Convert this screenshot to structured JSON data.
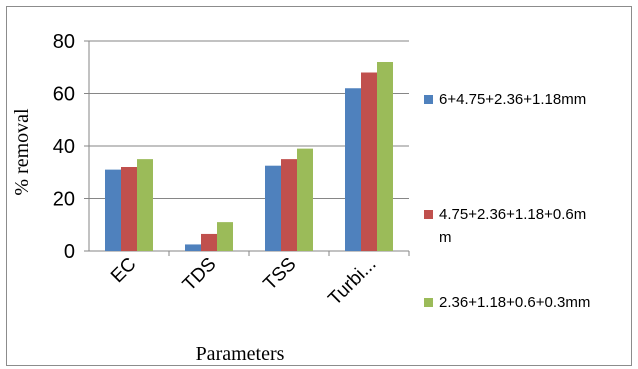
{
  "chart_data": {
    "type": "bar",
    "categories": [
      "EC",
      "TDS",
      "TSS",
      "Turbi..."
    ],
    "series": [
      {
        "name": "6+4.75+2.36+1.18mm",
        "color": "#4f81bd",
        "values": [
          31,
          2.5,
          32.5,
          62
        ]
      },
      {
        "name": "4.75+2.36+1.18+0.6mm",
        "color": "#c0504d",
        "values": [
          32,
          6.5,
          35,
          68
        ]
      },
      {
        "name": "2.36+1.18+0.6+0.3mm",
        "color": "#9bbb59",
        "values": [
          35,
          11,
          39,
          72
        ]
      }
    ],
    "legend_display_lines": [
      [
        "6+4.75+2.36+1.18mm"
      ],
      [
        "4.75+2.36+1.18+0.6m",
        "m"
      ],
      [
        "2.36+1.18+0.6+0.3mm"
      ]
    ],
    "title": "",
    "xlabel": "Parameters",
    "ylabel": "% removal",
    "ylim": [
      0,
      80
    ],
    "yticks": [
      0,
      20,
      40,
      60,
      80
    ],
    "grid": "horizontal",
    "legend_position": "right"
  }
}
